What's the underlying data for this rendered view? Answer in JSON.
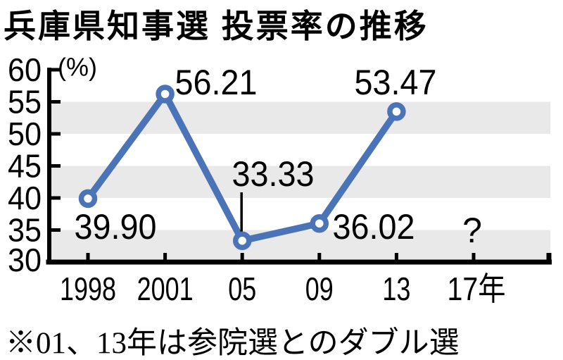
{
  "title": "兵庫県知事選 投票率の推移",
  "footnote": "※01、13年は参院選とのダブル選",
  "chart_data": {
    "type": "line",
    "title": "兵庫県知事選 投票率の推移",
    "unit_label": "(%)",
    "categories": [
      "1998",
      "2001",
      "05",
      "09",
      "13",
      "17年"
    ],
    "series": [
      {
        "name": "投票率",
        "values": [
          39.9,
          56.21,
          33.33,
          36.02,
          53.47,
          null
        ]
      }
    ],
    "data_labels": [
      "39.90",
      "56.21",
      "33.33",
      "36.02",
      "53.47",
      "?"
    ],
    "ylim": [
      30,
      60
    ],
    "y_ticks": [
      60,
      55,
      50,
      45,
      40,
      35,
      30
    ],
    "shaded_bands": [
      [
        55,
        50
      ],
      [
        45,
        40
      ],
      [
        35,
        30
      ]
    ],
    "grid": "banded-horizontal",
    "legend": "none",
    "footnote": "※01、13年は参院選とのダブル選",
    "colors": {
      "line": "#4a73b8",
      "marker_fill": "#ffffff",
      "band": "#e9e9e9",
      "axis": "#000000",
      "text": "#000000",
      "background": "#ffffff"
    }
  }
}
